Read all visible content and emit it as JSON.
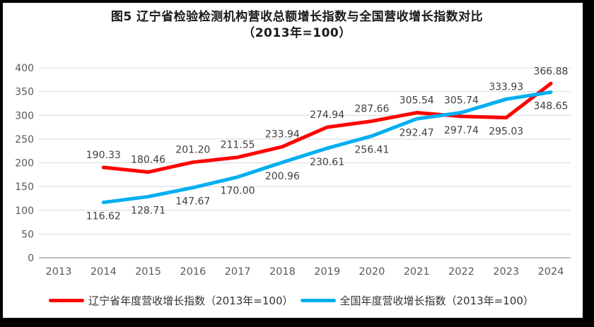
{
  "title": {
    "line1": "图5  辽宁省检验检测机构营收总额增长指数与全国营收增长指数对比",
    "line2": "（2013年=100）"
  },
  "colors": {
    "frame": "#000000",
    "background": "#ffffff",
    "gridline": "#d9d9d9",
    "axis_line": "#bfbfbf",
    "tick_label": "#595959",
    "data_label": "#404040",
    "liaoning_red": "#ff0000",
    "national_blue": "#00aeef"
  },
  "chart_data": {
    "type": "line",
    "title": "图5  辽宁省检验检测机构营收总额增长指数与全国营收增长指数对比（2013年=100）",
    "categories": [
      "2013",
      "2014",
      "2015",
      "2016",
      "2017",
      "2018",
      "2019",
      "2020",
      "2021",
      "2022",
      "2023",
      "2024"
    ],
    "series": [
      {
        "name": "辽宁省年度营收增长指数（2013年=100）",
        "color": "#ff0000",
        "values": [
          null,
          190.33,
          180.46,
          201.2,
          211.55,
          233.94,
          274.94,
          287.66,
          305.54,
          297.74,
          295.03,
          366.88
        ],
        "label_pos": [
          null,
          "above",
          "above",
          "above",
          "above",
          "above",
          "above",
          "above",
          "above",
          "below",
          "below",
          "above"
        ]
      },
      {
        "name": "全国年度营收增长指数（2013年=100）",
        "color": "#00aeef",
        "values": [
          null,
          116.62,
          128.71,
          147.67,
          170.0,
          200.96,
          230.61,
          256.41,
          292.47,
          305.74,
          333.93,
          348.65
        ],
        "label_pos": [
          null,
          "below",
          "below",
          "below",
          "below",
          "below",
          "below",
          "below",
          "below",
          "above",
          "above",
          "below"
        ]
      }
    ],
    "xlabel": "",
    "ylabel": "",
    "ylim": [
      0,
      400
    ],
    "yticks": [
      0,
      50,
      100,
      150,
      200,
      250,
      300,
      350,
      400
    ],
    "grid": true,
    "legend_position": "bottom",
    "label_decimals": 2
  }
}
